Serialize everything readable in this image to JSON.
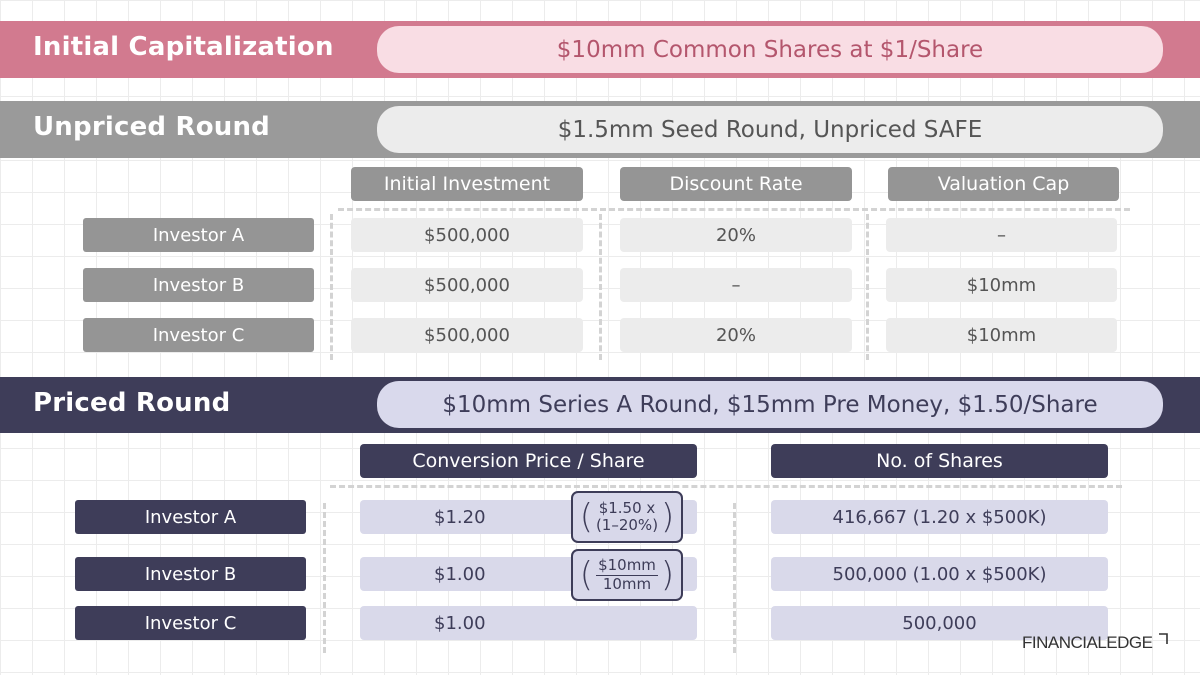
{
  "colors": {
    "initial_band": "#d27a8f",
    "initial_pill": "#f9dde4",
    "unpriced_band": "#9a9a9a",
    "unpriced_pill": "#ececec",
    "priced_band": "#3e3d59",
    "priced_pill": "#d9d9ec",
    "grey_label": "#959595",
    "grey_cell": "#ececec",
    "navy_label": "#3e3d59",
    "lav_cell": "#d9d9ea"
  },
  "initial": {
    "title": "Initial Capitalization",
    "summary": "$10mm Common Shares at $1/Share"
  },
  "unpriced": {
    "title": "Unpriced Round",
    "summary": "$1.5mm Seed Round, Unpriced SAFE",
    "headers": [
      "Initial Investment",
      "Discount Rate",
      "Valuation Cap"
    ],
    "rows": [
      {
        "investor": "Investor A",
        "investment": "$500,000",
        "discount": "20%",
        "cap": "–"
      },
      {
        "investor": "Investor B",
        "investment": "$500,000",
        "discount": "–",
        "cap": "$10mm"
      },
      {
        "investor": "Investor C",
        "investment": "$500,000",
        "discount": "20%",
        "cap": "$10mm"
      }
    ]
  },
  "priced": {
    "title": "Priced Round",
    "summary": "$10mm Series A Round, $15mm Pre Money, $1.50/Share",
    "headers": [
      "Conversion Price / Share",
      "No. of Shares"
    ],
    "rows": [
      {
        "investor": "Investor A",
        "price": "$1.20",
        "shares": "416,667 (1.20 x $500K)",
        "formula_top": "$1.50 x",
        "formula_bottom": "(1–20%)"
      },
      {
        "investor": "Investor B",
        "price": "$1.00",
        "shares": "500,000 (1.00 x $500K)",
        "formula_top": "$10mm",
        "formula_bottom": "10mm"
      },
      {
        "investor": "Investor C",
        "price": "$1.00",
        "shares": "500,000"
      }
    ]
  },
  "logo": {
    "text": "FINANCIALEDGE"
  }
}
